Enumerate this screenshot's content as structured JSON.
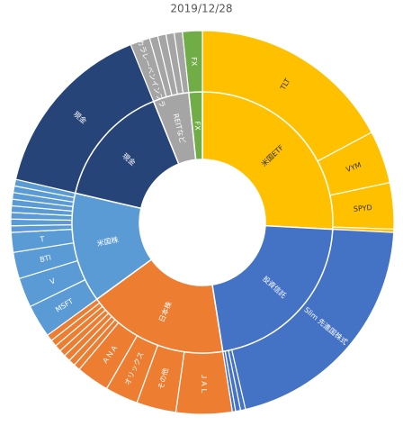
{
  "chart_data": {
    "type": "sunburst",
    "title": "2019/12/28",
    "nodes": [
      {
        "name": "米国ETF",
        "color": "#ffc000",
        "children": [
          {
            "name": "TLT",
            "value": 62
          },
          {
            "name": "VYM",
            "value": 16
          },
          {
            "name": "SPYD",
            "value": 14
          },
          {
            "name": null,
            "value": 1
          }
        ]
      },
      {
        "name": "投資信託",
        "color": "#4472c4",
        "children": [
          {
            "name": "Slim 先進国株式",
            "value": 74
          },
          {
            "name": null,
            "value": 1.5
          },
          {
            "name": null,
            "value": 1.5
          },
          {
            "name": null,
            "value": 1
          }
        ]
      },
      {
        "name": "日本株",
        "color": "#ed7d31",
        "children": [
          {
            "name": "ＪＡＬ",
            "value": 17
          },
          {
            "name": "その他",
            "value": 12
          },
          {
            "name": "オリックス",
            "value": 10
          },
          {
            "name": "ＡＮＡ",
            "value": 10
          },
          {
            "name": null,
            "value": 2
          },
          {
            "name": null,
            "value": 2
          },
          {
            "name": null,
            "value": 2
          },
          {
            "name": null,
            "value": 2
          },
          {
            "name": null,
            "value": 2
          },
          {
            "name": null,
            "value": 2
          },
          {
            "name": null,
            "value": 2
          }
        ]
      },
      {
        "name": "米国株",
        "color": "#5b9bd5",
        "children": [
          {
            "name": "MSFT",
            "value": 10
          },
          {
            "name": "V",
            "value": 9
          },
          {
            "name": "BTI",
            "value": 8
          },
          {
            "name": "T",
            "value": 6
          },
          {
            "name": null,
            "value": 2
          },
          {
            "name": null,
            "value": 2
          },
          {
            "name": null,
            "value": 2
          },
          {
            "name": null,
            "value": 2
          },
          {
            "name": null,
            "value": 2
          },
          {
            "name": null,
            "value": 2
          },
          {
            "name": null,
            "value": 2
          },
          {
            "name": null,
            "value": 2
          }
        ]
      },
      {
        "name": "現金",
        "color": "#264478",
        "children": [
          {
            "name": "現金",
            "value": 55
          }
        ]
      },
      {
        "name": "REITなど",
        "color": "#a5a5a5",
        "children": [
          {
            "name": "タカラレーベンインフラ",
            "value": 6
          },
          {
            "name": null,
            "value": 2.5
          },
          {
            "name": null,
            "value": 2.5
          },
          {
            "name": null,
            "value": 2.5
          },
          {
            "name": null,
            "value": 2.5
          }
        ]
      },
      {
        "name": "FX",
        "color": "#70ad47",
        "children": [
          {
            "name": "FX",
            "value": 6
          }
        ]
      }
    ]
  }
}
